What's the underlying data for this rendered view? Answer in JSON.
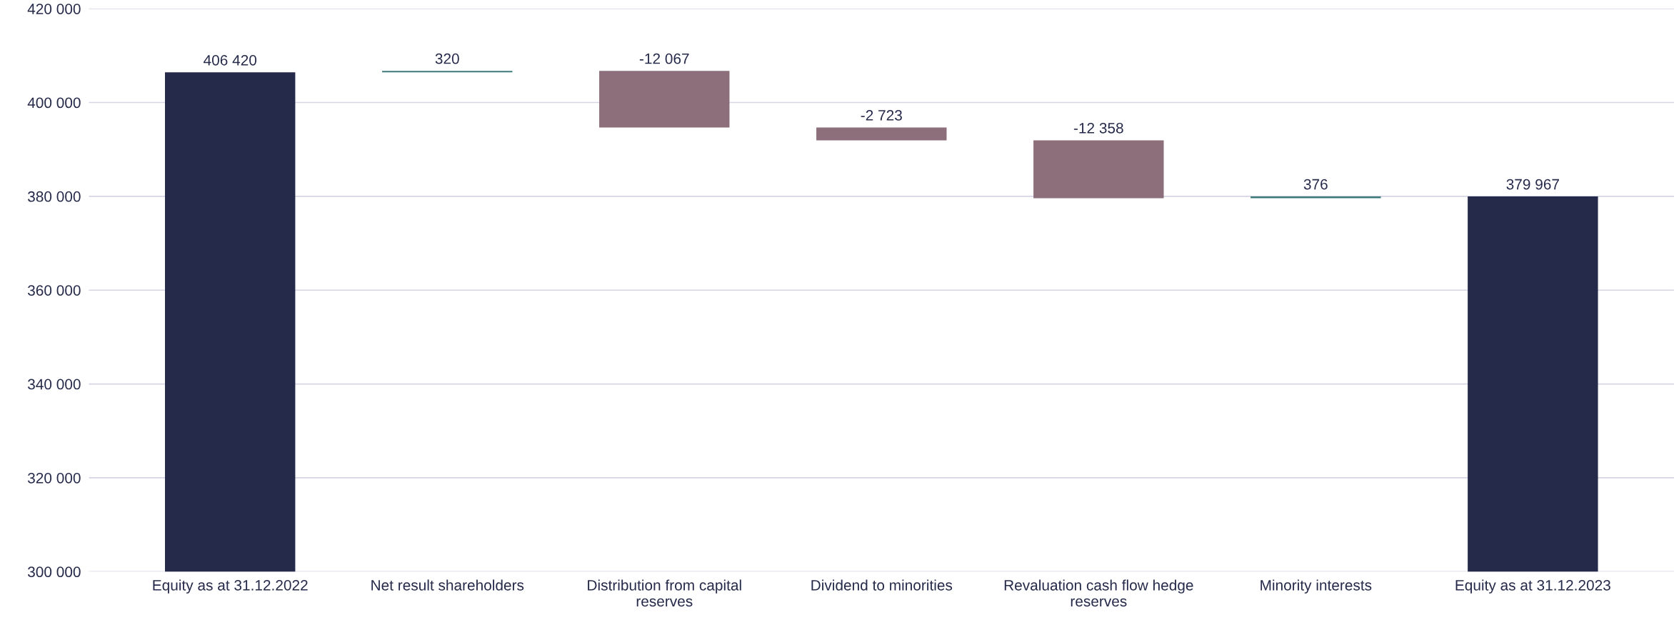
{
  "chart_data": {
    "type": "bar",
    "categories": [
      "Equity as at 31.12.2022",
      "Net result shareholders",
      "Distribution from capital reserves",
      "Dividend to minorities",
      "Revaluation cash flow hedge reserves",
      "Minority interests",
      "Equity as at 31.12.2023"
    ],
    "values": [
      406420,
      320,
      -12067,
      -2723,
      -12358,
      376,
      379967
    ],
    "base": [
      0,
      406420,
      406740,
      394673,
      391950,
      379592,
      0
    ],
    "colors": [
      "#262a4a",
      "#3e7a7a",
      "#8c6f7a",
      "#8c6f7a",
      "#8c6f7a",
      "#3e7a7a",
      "#262a4a"
    ],
    "value_labels": [
      "406 420",
      "320",
      "-12 067",
      "-2 723",
      "-12 358",
      "376",
      "379 967"
    ],
    "ylim": [
      300000,
      420000
    ],
    "yticks": [
      {
        "value": 300000,
        "label": "300 000"
      },
      {
        "value": 320000,
        "label": "320 000"
      },
      {
        "value": 340000,
        "label": "340 000"
      },
      {
        "value": 360000,
        "label": "360 000"
      },
      {
        "value": 380000,
        "label": "380 000"
      },
      {
        "value": 400000,
        "label": "400 000"
      },
      {
        "value": 420000,
        "label": "420 000"
      }
    ],
    "grid": "y"
  }
}
